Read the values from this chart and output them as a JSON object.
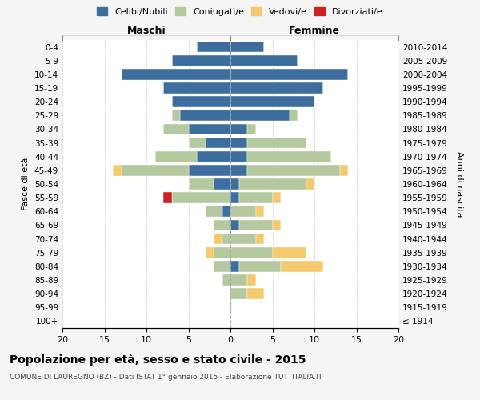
{
  "age_groups": [
    "100+",
    "95-99",
    "90-94",
    "85-89",
    "80-84",
    "75-79",
    "70-74",
    "65-69",
    "60-64",
    "55-59",
    "50-54",
    "45-49",
    "40-44",
    "35-39",
    "30-34",
    "25-29",
    "20-24",
    "15-19",
    "10-14",
    "5-9",
    "0-4"
  ],
  "birth_years": [
    "≤ 1914",
    "1915-1919",
    "1920-1924",
    "1925-1929",
    "1930-1934",
    "1935-1939",
    "1940-1944",
    "1945-1949",
    "1950-1954",
    "1955-1959",
    "1960-1964",
    "1965-1969",
    "1970-1974",
    "1975-1979",
    "1980-1984",
    "1985-1989",
    "1990-1994",
    "1995-1999",
    "2000-2004",
    "2005-2009",
    "2010-2014"
  ],
  "colors": {
    "celibi": "#3d6e9e",
    "coniugati": "#b5c9a0",
    "vedovi": "#f5c96e",
    "divorziati": "#cc2222"
  },
  "males": {
    "celibi": [
      0,
      0,
      0,
      0,
      0,
      0,
      0,
      0,
      1,
      0,
      2,
      5,
      4,
      3,
      5,
      6,
      7,
      8,
      13,
      7,
      4
    ],
    "coniugati": [
      0,
      0,
      0,
      1,
      2,
      2,
      1,
      2,
      2,
      7,
      3,
      8,
      5,
      2,
      3,
      1,
      0,
      0,
      0,
      0,
      0
    ],
    "vedovi": [
      0,
      0,
      0,
      0,
      0,
      1,
      1,
      0,
      0,
      0,
      0,
      1,
      0,
      0,
      0,
      0,
      0,
      0,
      0,
      0,
      0
    ],
    "divorziati": [
      0,
      0,
      0,
      0,
      0,
      0,
      0,
      0,
      0,
      1,
      0,
      0,
      0,
      0,
      0,
      0,
      0,
      0,
      0,
      0,
      0
    ]
  },
  "females": {
    "celibi": [
      0,
      0,
      0,
      0,
      1,
      0,
      0,
      1,
      0,
      1,
      1,
      2,
      2,
      2,
      2,
      7,
      10,
      11,
      14,
      8,
      4
    ],
    "coniugati": [
      0,
      0,
      2,
      2,
      5,
      5,
      3,
      4,
      3,
      4,
      8,
      11,
      10,
      7,
      1,
      1,
      0,
      0,
      0,
      0,
      0
    ],
    "vedovi": [
      0,
      0,
      2,
      1,
      5,
      4,
      1,
      1,
      1,
      1,
      1,
      1,
      0,
      0,
      0,
      0,
      0,
      0,
      0,
      0,
      0
    ],
    "divorziati": [
      0,
      0,
      0,
      0,
      0,
      0,
      0,
      0,
      0,
      0,
      0,
      0,
      0,
      0,
      0,
      0,
      0,
      0,
      0,
      0,
      0
    ]
  },
  "xlim": [
    -20,
    20
  ],
  "xticks": [
    -20,
    -15,
    -10,
    -5,
    0,
    5,
    10,
    15,
    20
  ],
  "xticklabels": [
    "20",
    "15",
    "10",
    "5",
    "0",
    "5",
    "10",
    "15",
    "20"
  ],
  "title": "Popolazione per età, sesso e stato civile - 2015",
  "subtitle": "COMUNE DI LAUREGNO (BZ) - Dati ISTAT 1° gennaio 2015 - Elaborazione TUTTITALIA.IT",
  "ylabel_left": "Fasce di età",
  "ylabel_right": "Anni di nascita",
  "label_maschi": "Maschi",
  "label_femmine": "Femmine",
  "legend_labels": [
    "Celibi/Nubili",
    "Coniugati/e",
    "Vedovi/e",
    "Divorziati/e"
  ],
  "bg_color": "#f5f5f5",
  "plot_bg": "#ffffff"
}
